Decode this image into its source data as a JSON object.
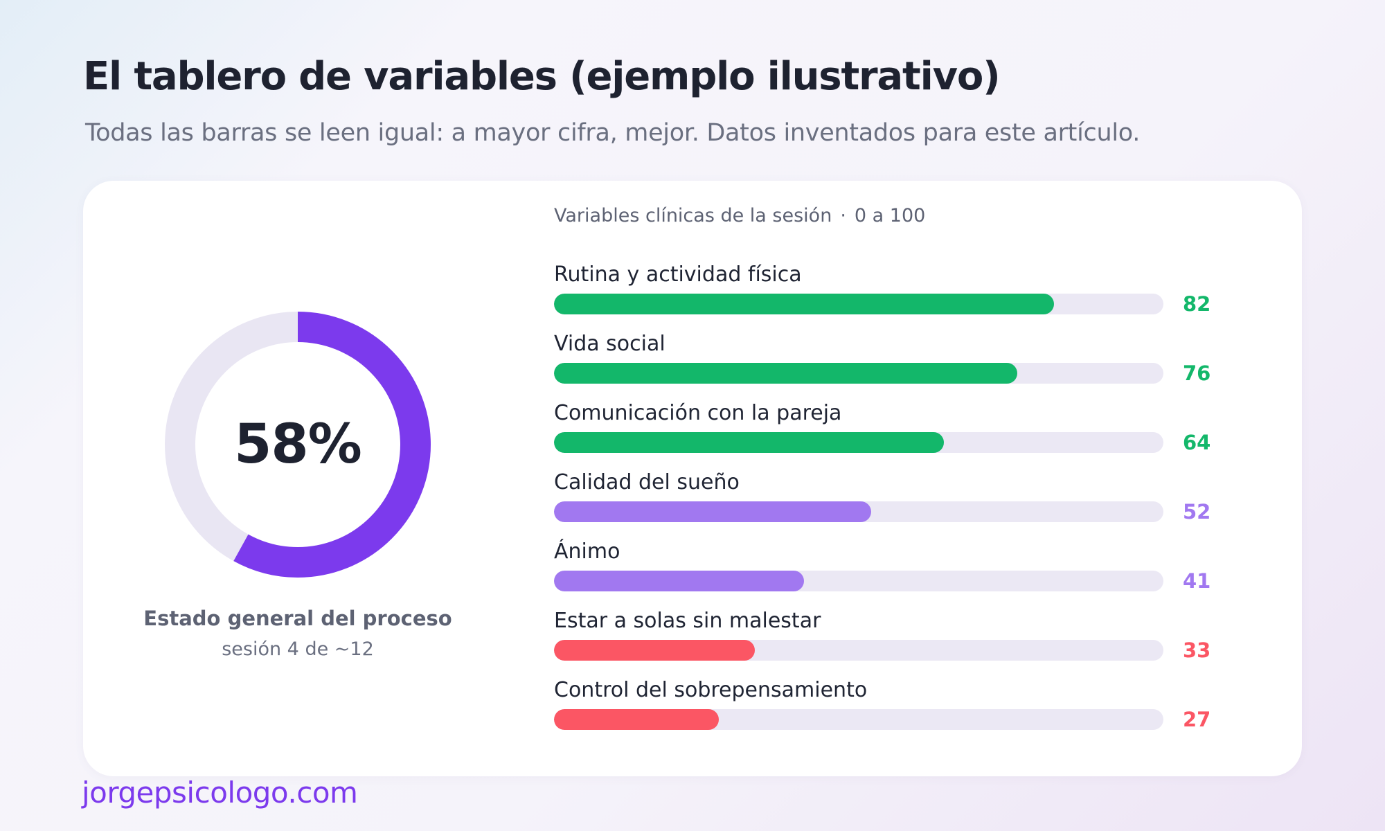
{
  "title": "El tablero de variables (ejemplo ilustrativo)",
  "subtitle": "Todas las barras se leen igual: a mayor cifra, mejor. Datos inventados para este artículo.",
  "donut": {
    "value_label": "58%",
    "value": 58,
    "label": "Estado general del proceso",
    "sub": "sesión 4 de ~12",
    "color": "#7c3aed",
    "track_color": "#e9e6f3"
  },
  "panel": {
    "heading": "Variables clínicas de la sesión",
    "separator": "·",
    "range": "0 a 100"
  },
  "colors": {
    "green": "#13b76a",
    "purple": "#a178f0",
    "red": "#fb5664",
    "track": "#ebe8f4"
  },
  "chart_data": {
    "type": "bar",
    "orientation": "horizontal",
    "xlim": [
      0,
      100
    ],
    "categories": [
      "Rutina y actividad física",
      "Vida social",
      "Comunicación con la pareja",
      "Calidad del sueño",
      "Ánimo",
      "Estar a solas sin malestar",
      "Control del sobrepensamiento"
    ],
    "values": [
      82,
      76,
      64,
      52,
      41,
      33,
      27
    ],
    "bar_colors": [
      "#13b76a",
      "#13b76a",
      "#13b76a",
      "#a178f0",
      "#a178f0",
      "#fb5664",
      "#fb5664"
    ]
  },
  "footer": "jorgepsicologo.com"
}
